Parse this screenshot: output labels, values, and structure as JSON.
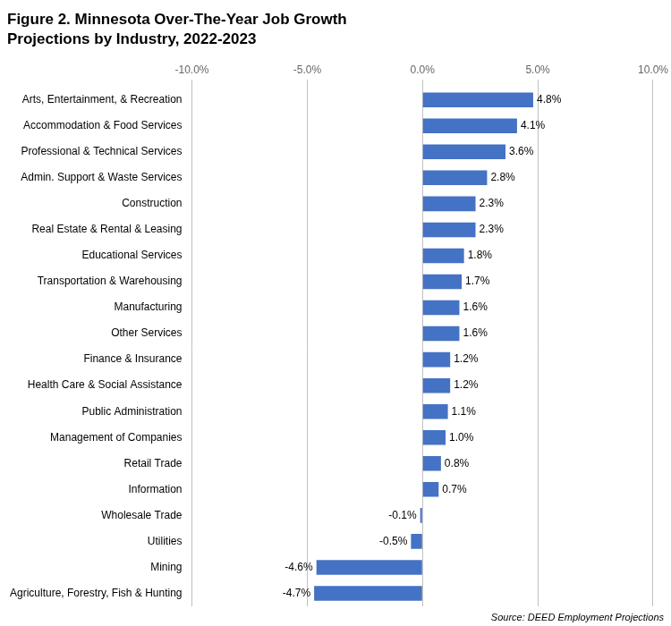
{
  "chart_data": {
    "type": "bar",
    "orientation": "horizontal",
    "title": "Figure 2. Minnesota Over-The-Year Job Growth",
    "subtitle": "Projections by Industry, 2022-2023",
    "source": "Source: DEED Employment Projections",
    "categories": [
      "Arts, Entertainment, & Recreation",
      "Accommodation & Food Services",
      "Professional & Technical Services",
      "Admin. Support & Waste Services",
      "Construction",
      "Real Estate & Rental & Leasing",
      "Educational Services",
      "Transportation & Warehousing",
      "Manufacturing",
      "Other Services",
      "Finance & Insurance",
      "Health Care & Social Assistance",
      "Public Administration",
      "Management of Companies",
      "Retail Trade",
      "Information",
      "Wholesale Trade",
      "Utilities",
      "Mining",
      "Agriculture, Forestry, Fish & Hunting"
    ],
    "values": [
      4.8,
      4.1,
      3.6,
      2.8,
      2.3,
      2.3,
      1.8,
      1.7,
      1.6,
      1.6,
      1.2,
      1.2,
      1.1,
      1.0,
      0.8,
      0.7,
      -0.1,
      -0.5,
      -4.6,
      -4.7
    ],
    "value_labels": [
      "4.8%",
      "4.1%",
      "3.6%",
      "2.8%",
      "2.3%",
      "2.3%",
      "1.8%",
      "1.7%",
      "1.6%",
      "1.6%",
      "1.2%",
      "1.2%",
      "1.1%",
      "1.0%",
      "0.8%",
      "0.7%",
      "-0.1%",
      "-0.5%",
      "-4.6%",
      "-4.7%"
    ],
    "data_labels": true,
    "color": "#4472C4",
    "xlim": [
      -10.0,
      10.0
    ],
    "xticks": [
      {
        "value": -10.0,
        "label": "-10.0%"
      },
      {
        "value": -5.0,
        "label": "-5.0%"
      },
      {
        "value": 0.0,
        "label": "0.0%"
      },
      {
        "value": 5.0,
        "label": "5.0%"
      },
      {
        "value": 10.0,
        "label": "10.0%"
      }
    ],
    "grid": true
  }
}
